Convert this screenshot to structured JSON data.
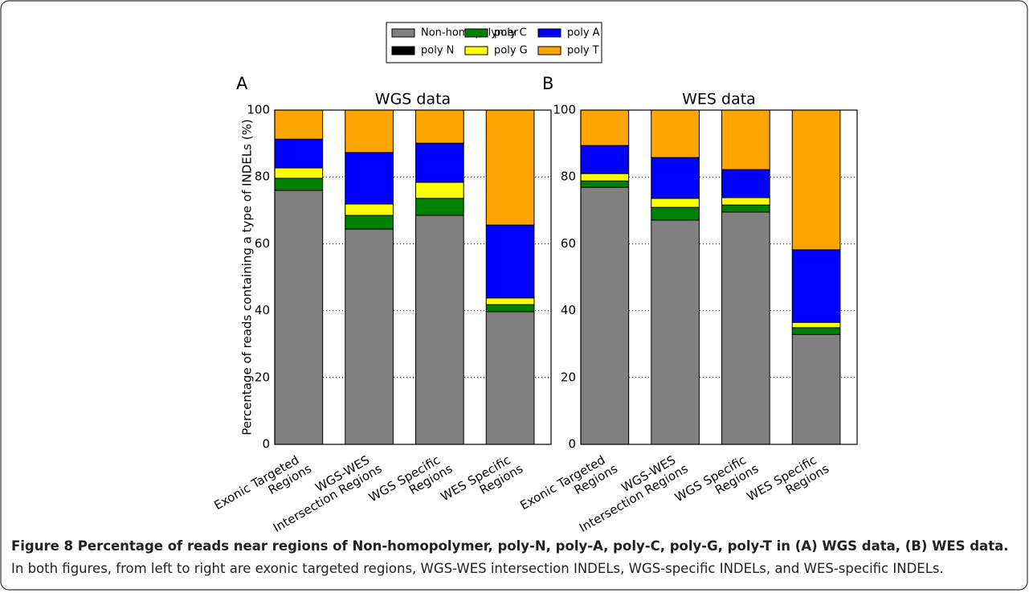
{
  "chart_data": [
    {
      "type": "stacked-bar",
      "panel_label": "A",
      "title": "WGS data",
      "ylabel": "Percentage of reads containing a type of INDELs (%)",
      "categories": [
        "Exonic Targeted\nRegions",
        "WGS-WES\nIntersection Regions",
        "WGS Specific\nRegions",
        "WES Specific\nRegions"
      ],
      "series": [
        {
          "name": "Non-homopolymer",
          "color": "#808080",
          "values": [
            76.0,
            64.4,
            68.5,
            39.7
          ]
        },
        {
          "name": "poly N",
          "color": "#000000",
          "values": [
            0,
            0,
            0,
            0
          ]
        },
        {
          "name": "poly C",
          "color": "#008000",
          "values": [
            3.6,
            4.1,
            5.1,
            2.1
          ]
        },
        {
          "name": "poly G",
          "color": "#ffff00",
          "values": [
            3.1,
            3.4,
            4.8,
            2.0
          ]
        },
        {
          "name": "poly A",
          "color": "#0000ff",
          "values": [
            8.6,
            15.4,
            11.7,
            21.8
          ]
        },
        {
          "name": "poly T",
          "color": "#ffa500",
          "values": [
            8.7,
            12.7,
            9.9,
            34.4
          ]
        }
      ],
      "ylim": [
        0,
        100
      ],
      "yticks": [
        0,
        20,
        40,
        60,
        80,
        100
      ],
      "grid": true
    },
    {
      "type": "stacked-bar",
      "panel_label": "B",
      "title": "WES data",
      "categories": [
        "Exonic Targeted\nRegions",
        "WGS-WES\nIntersection Regions",
        "WGS Specific\nRegions",
        "WES Specific\nRegions"
      ],
      "series": [
        {
          "color": "#808080",
          "values": [
            76.9,
            67.1,
            69.5,
            32.9
          ]
        },
        {
          "color": "#000000",
          "values": [
            0,
            0,
            0,
            0
          ]
        },
        {
          "color": "#008000",
          "values": [
            1.9,
            3.8,
            2.1,
            2.0
          ]
        },
        {
          "color": "#ffff00",
          "values": [
            2.2,
            2.7,
            2.2,
            1.6
          ]
        },
        {
          "color": "#0000ff",
          "values": [
            8.4,
            12.2,
            8.4,
            21.7
          ]
        },
        {
          "color": "#ffa500",
          "values": [
            10.6,
            14.2,
            17.8,
            41.8
          ]
        }
      ],
      "ylim": [
        0,
        100
      ],
      "yticks": [
        0,
        20,
        40,
        60,
        80,
        100
      ],
      "grid": true
    }
  ],
  "caption": {
    "title": "Figure 8 Percentage of reads near regions of Non-homopolymer, poly-N, poly-A, poly-C, poly-G, poly-T in (A) WGS data, (B) WES data.",
    "text": "In both figures, from left to right are exonic targeted regions, WGS-WES intersection INDELs, WGS-specific INDELs, and WES-specific INDELs."
  }
}
